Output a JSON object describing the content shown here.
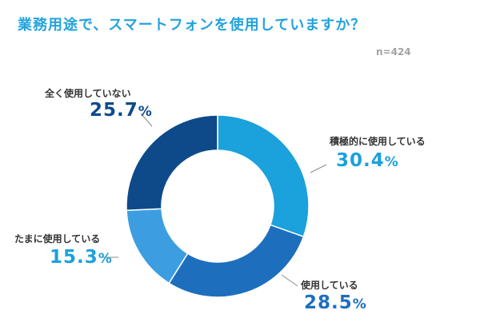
{
  "title": "業務用途で、スマートフォンを使用していますか？",
  "sample_size": "n=424",
  "chart_data": {
    "type": "pie",
    "donut": true,
    "title": "業務用途で、スマートフォンを使用していますか？",
    "n": 424,
    "categories": [
      "積極的に使用している",
      "使用している",
      "たまに使用している",
      "全く使用していない"
    ],
    "values": [
      30.4,
      28.5,
      15.3,
      25.7
    ],
    "colors": [
      "#1ba1dc",
      "#1d6fbe",
      "#3c9ee0",
      "#0e4a8a"
    ],
    "label_colors": [
      "#1ba1dc",
      "#1d6fbe",
      "#1ba1dc",
      "#0e4a8a"
    ],
    "unit": "%"
  }
}
